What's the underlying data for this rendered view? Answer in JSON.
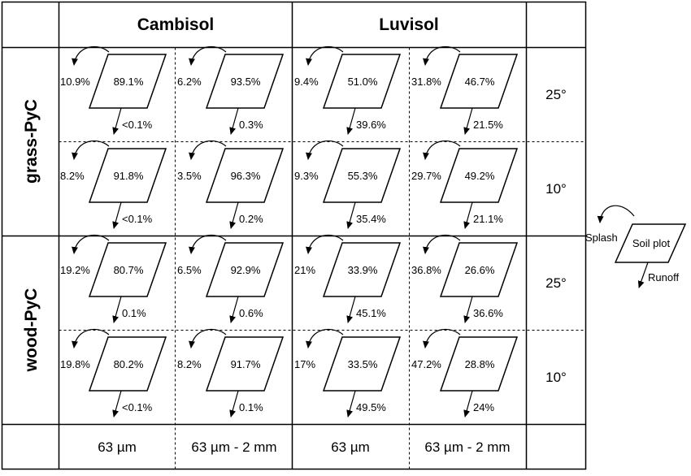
{
  "columns": {
    "soil_headers": [
      "Cambisol",
      "Luvisol"
    ],
    "size_labels": [
      "63 µm",
      "63 µm - 2 mm",
      "63 µm",
      "63 µm - 2 mm"
    ]
  },
  "rows": {
    "treatment_headers": [
      "grass-PyC",
      "wood-PyC"
    ],
    "slope_labels": [
      "25°",
      "10°",
      "25°",
      "10°"
    ]
  },
  "cells": [
    [
      {
        "splash": "10.9%",
        "plot": "89.1%",
        "runoff": "<0.1%"
      },
      {
        "splash": "6.2%",
        "plot": "93.5%",
        "runoff": "0.3%"
      },
      {
        "splash": "9.4%",
        "plot": "51.0%",
        "runoff": "39.6%"
      },
      {
        "splash": "31.8%",
        "plot": "46.7%",
        "runoff": "21.5%"
      }
    ],
    [
      {
        "splash": "8.2%",
        "plot": "91.8%",
        "runoff": "<0.1%"
      },
      {
        "splash": "3.5%",
        "plot": "96.3%",
        "runoff": "0.2%"
      },
      {
        "splash": "9.3%",
        "plot": "55.3%",
        "runoff": "35.4%"
      },
      {
        "splash": "29.7%",
        "plot": "49.2%",
        "runoff": "21.1%"
      }
    ],
    [
      {
        "splash": "19.2%",
        "plot": "80.7%",
        "runoff": "0.1%"
      },
      {
        "splash": "6.5%",
        "plot": "92.9%",
        "runoff": "0.6%"
      },
      {
        "splash": "21%",
        "plot": "33.9%",
        "runoff": "45.1%"
      },
      {
        "splash": "36.8%",
        "plot": "26.6%",
        "runoff": "36.6%"
      }
    ],
    [
      {
        "splash": "19.8%",
        "plot": "80.2%",
        "runoff": "<0.1%"
      },
      {
        "splash": "8.2%",
        "plot": "91.7%",
        "runoff": "0.1%"
      },
      {
        "splash": "17%",
        "plot": "33.5%",
        "runoff": "49.5%"
      },
      {
        "splash": "47.2%",
        "plot": "28.8%",
        "runoff": "24%"
      }
    ]
  ],
  "legend": {
    "splash": "Splash",
    "plot": "Soil plot",
    "runoff": "Runoff"
  }
}
